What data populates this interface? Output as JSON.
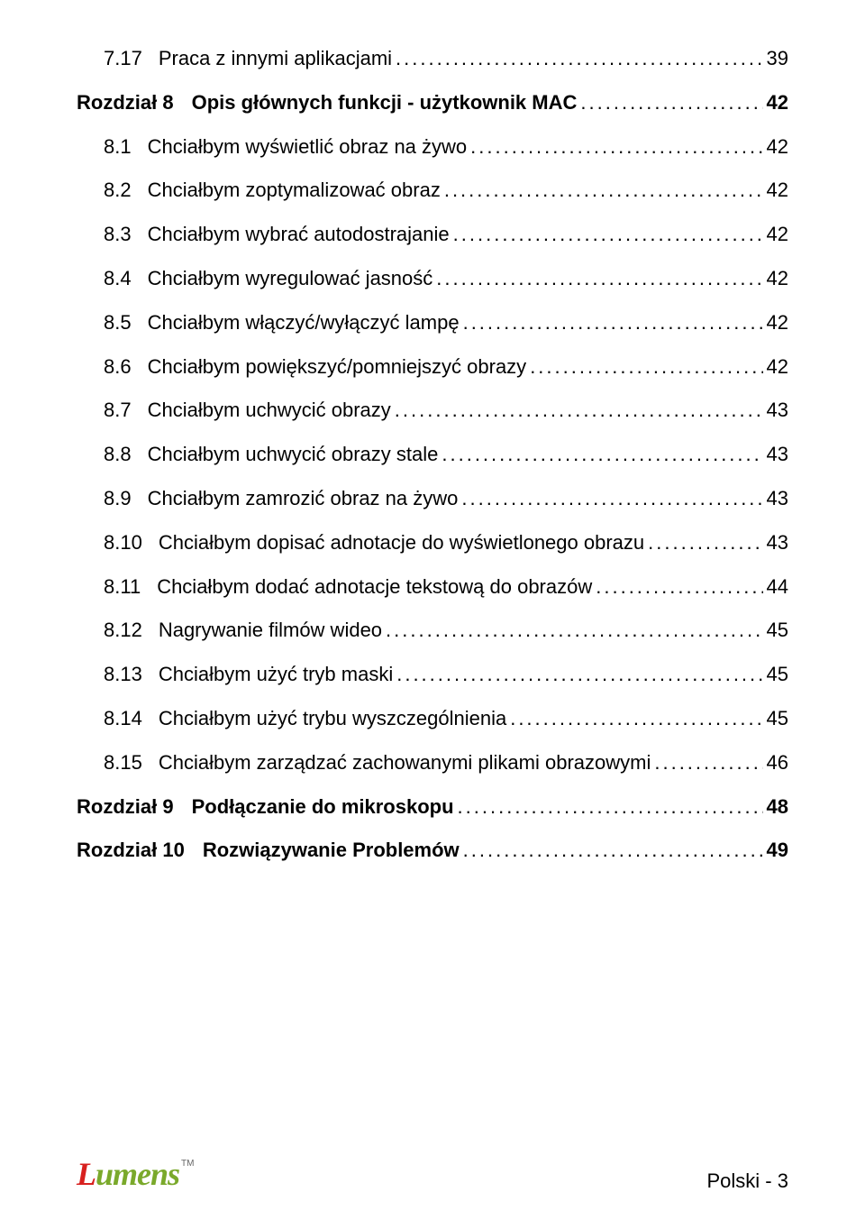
{
  "toc": [
    {
      "level": 1,
      "num": "7.17",
      "label": "Praca z innymi aplikacjami",
      "page": "39"
    },
    {
      "level": 0,
      "num": "Rozdział 8",
      "label": "Opis głównych funkcji - użytkownik MAC",
      "page": "42"
    },
    {
      "level": 1,
      "num": "8.1",
      "label": "Chciałbym wyświetlić obraz na żywo",
      "page": "42"
    },
    {
      "level": 1,
      "num": "8.2",
      "label": "Chciałbym zoptymalizować obraz",
      "page": "42"
    },
    {
      "level": 1,
      "num": "8.3",
      "label": "Chciałbym wybrać autodostrajanie",
      "page": "42"
    },
    {
      "level": 1,
      "num": "8.4",
      "label": "Chciałbym wyregulować jasność",
      "page": "42"
    },
    {
      "level": 1,
      "num": "8.5",
      "label": "Chciałbym włączyć/wyłączyć lampę",
      "page": "42"
    },
    {
      "level": 1,
      "num": "8.6",
      "label": "Chciałbym powiększyć/pomniejszyć obrazy",
      "page": "42"
    },
    {
      "level": 1,
      "num": "8.7",
      "label": "Chciałbym uchwycić obrazy",
      "page": "43"
    },
    {
      "level": 1,
      "num": "8.8",
      "label": "Chciałbym uchwycić obrazy stale",
      "page": "43"
    },
    {
      "level": 1,
      "num": "8.9",
      "label": "Chciałbym zamrozić obraz na żywo",
      "page": "43"
    },
    {
      "level": 1,
      "num": "8.10",
      "label": "Chciałbym dopisać adnotacje do wyświetlonego obrazu",
      "page": "43"
    },
    {
      "level": 1,
      "num": "8.11",
      "label": "Chciałbym dodać adnotacje tekstową do obrazów",
      "page": "44"
    },
    {
      "level": 1,
      "num": "8.12",
      "label": "Nagrywanie filmów wideo",
      "page": "45"
    },
    {
      "level": 1,
      "num": "8.13",
      "label": "  Chciałbym użyć tryb maski",
      "page": "45"
    },
    {
      "level": 1,
      "num": "8.14",
      "label": "Chciałbym użyć trybu wyszczególnienia",
      "page": "45"
    },
    {
      "level": 1,
      "num": "8.15",
      "label": "Chciałbym zarządzać zachowanymi plikami obrazowymi",
      "page": "46"
    },
    {
      "level": 0,
      "num": "Rozdział 9",
      "label": "Podłączanie do mikroskopu",
      "page": "48"
    },
    {
      "level": 0,
      "num": "Rozdział 10",
      "label": "Rozwiązywanie Problemów",
      "page": "49"
    }
  ],
  "footer": {
    "logo_red": "L",
    "logo_grn": "umens",
    "right_label": "Polski -",
    "right_page": "3"
  },
  "colors": {
    "text": "#000000",
    "bg": "#ffffff",
    "logo_red": "#d8201f",
    "logo_green": "#7aa92b"
  },
  "typography": {
    "body_fontsize_pt": 16,
    "body_family": "Arial",
    "logo_family": "Times New Roman italic bold"
  }
}
